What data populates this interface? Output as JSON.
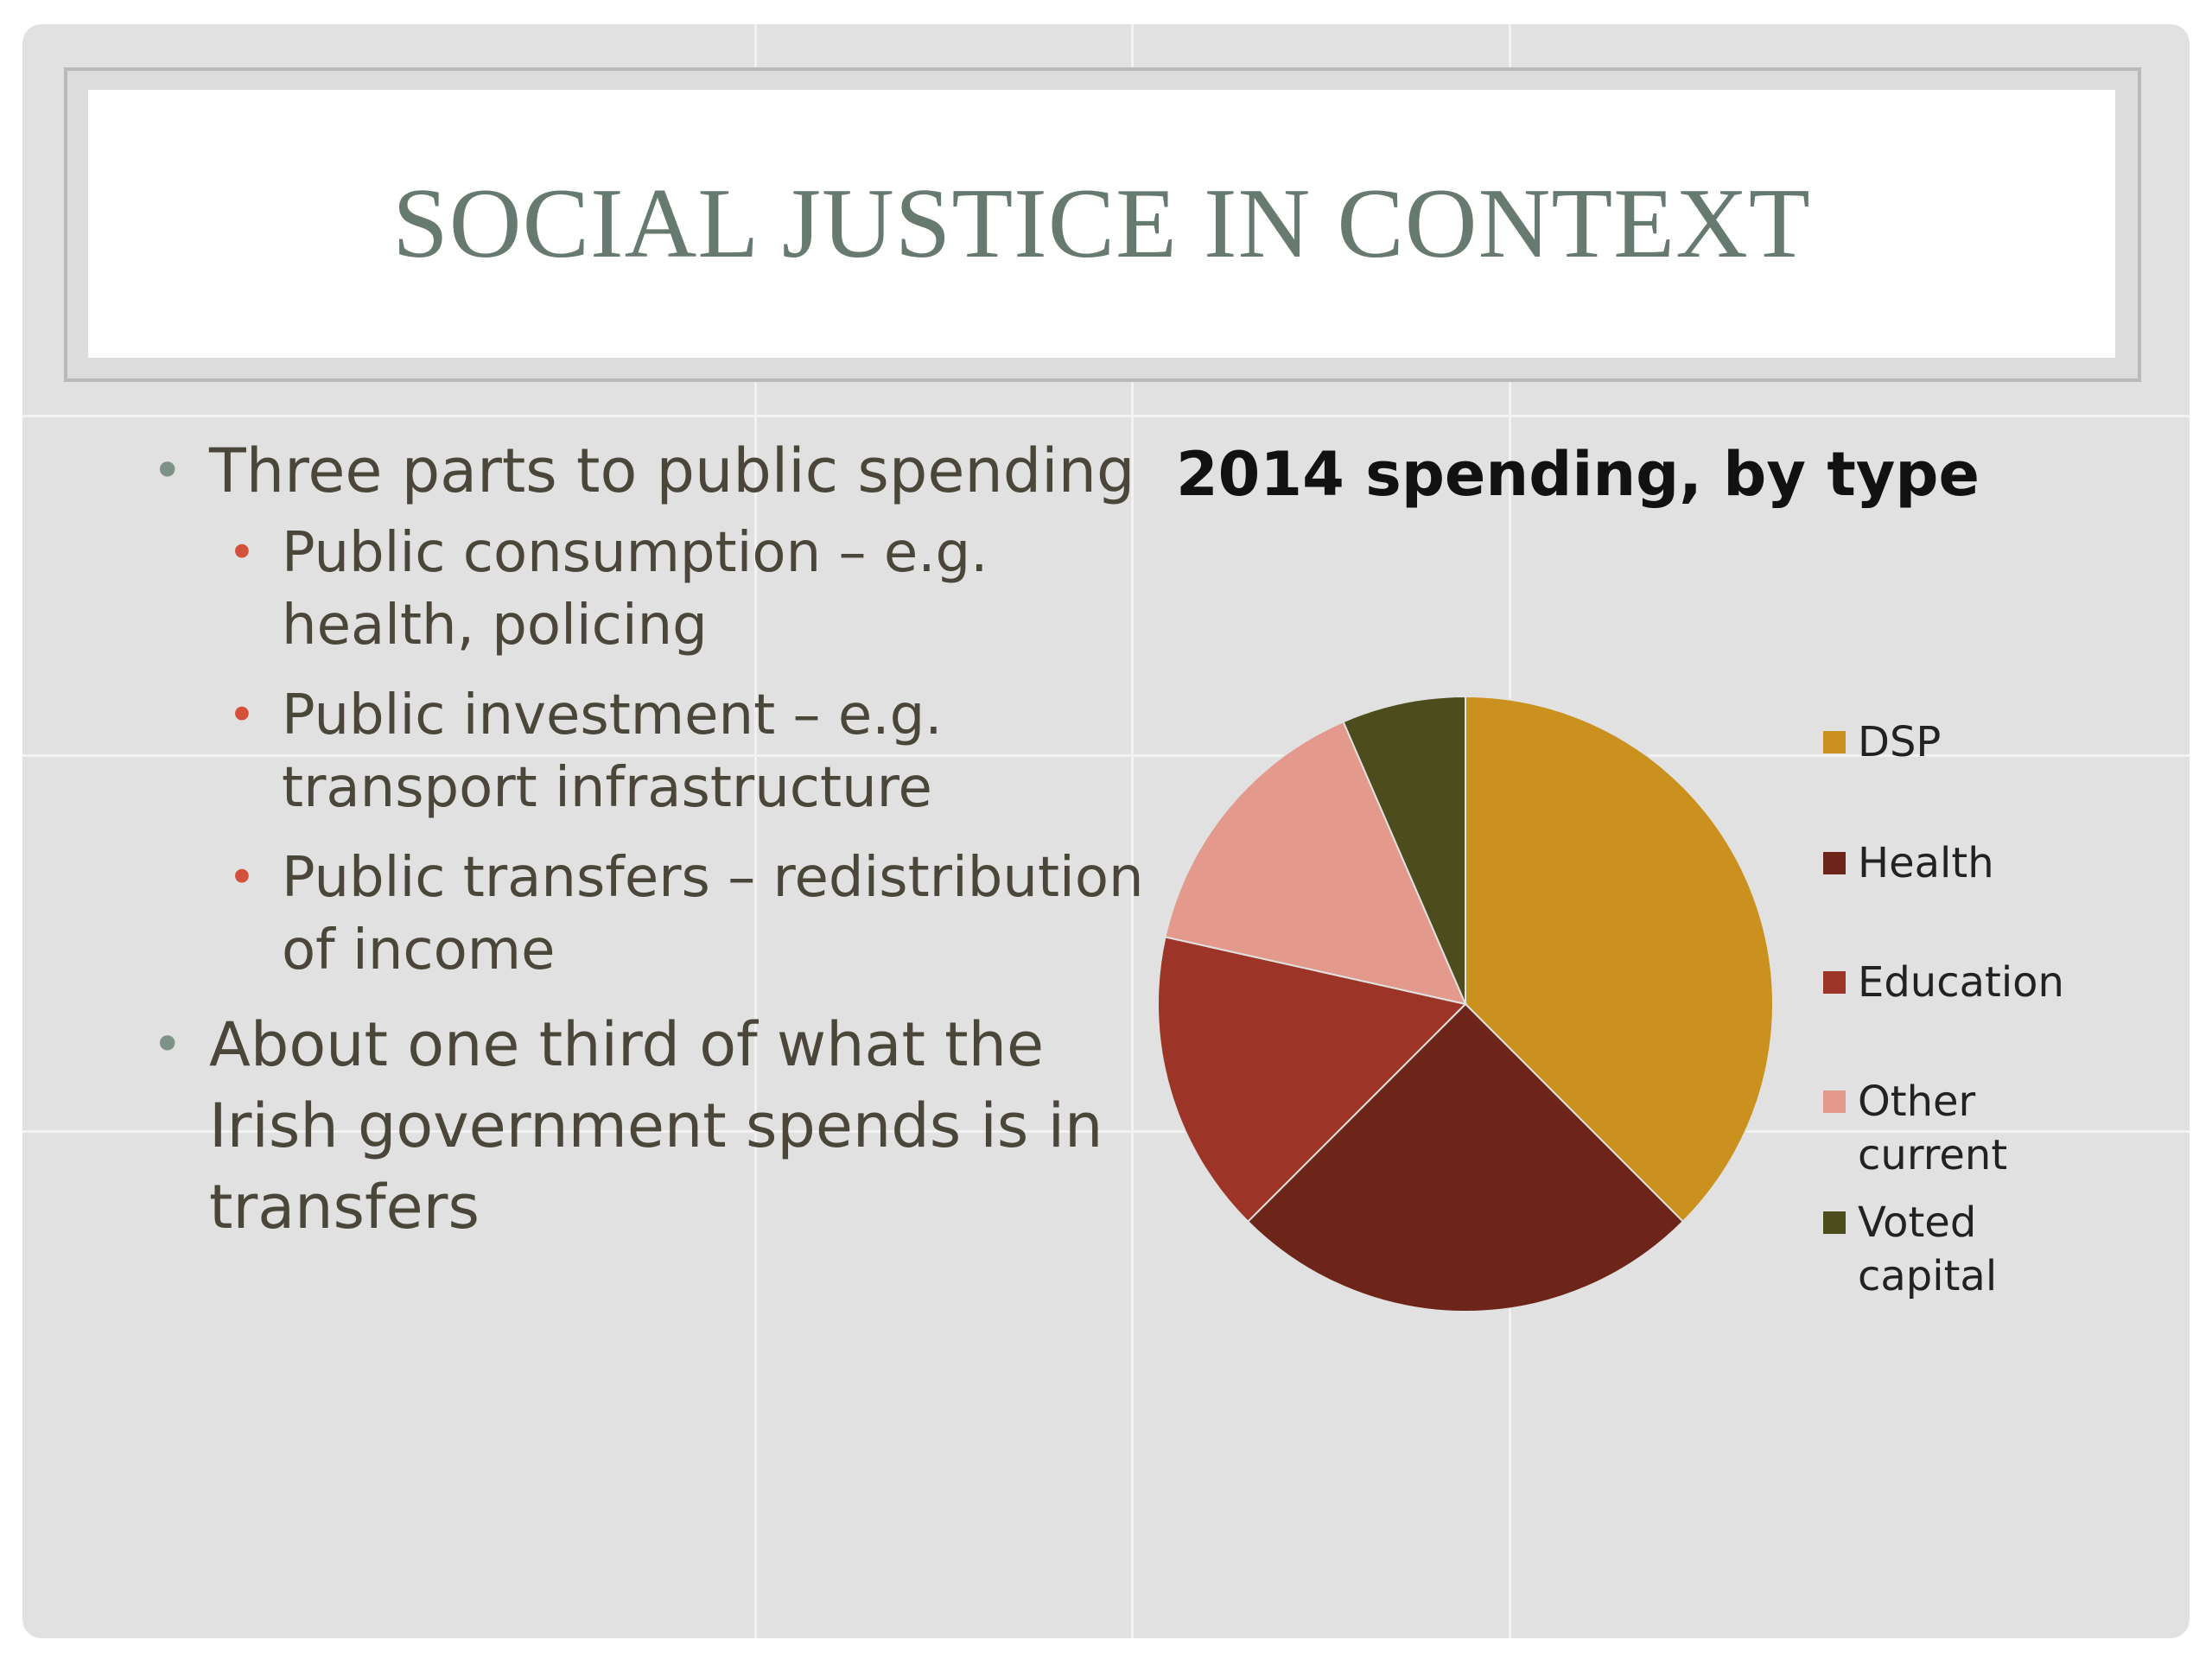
{
  "slide": {
    "title": "SOCIAL JUSTICE IN CONTEXT",
    "bullets": [
      {
        "level": 1,
        "text": "Three parts to public spending"
      },
      {
        "level": 2,
        "text": "Public consumption – e.g. health, policing"
      },
      {
        "level": 2,
        "text": "Public investment – e.g. transport infrastructure"
      },
      {
        "level": 2,
        "text": "Public transfers – redistribution of income"
      },
      {
        "level": 1,
        "text": "About one third of what the Irish government spends is in transfers"
      }
    ]
  },
  "chart_data": {
    "type": "pie",
    "title": "2014 spending, by type",
    "categories": [
      "DSP",
      "Health",
      "Education",
      "Other current",
      "Voted capital"
    ],
    "values": [
      37.5,
      25.0,
      16.0,
      15.0,
      6.5
    ],
    "colors": [
      "#cb911e",
      "#6d2419",
      "#9c3527",
      "#e39a8c",
      "#4c4c1c"
    ],
    "legend": "right"
  }
}
